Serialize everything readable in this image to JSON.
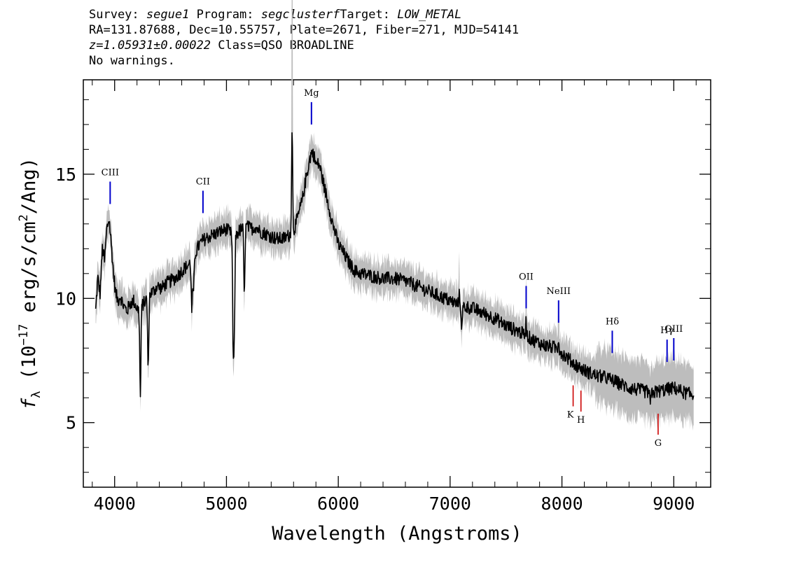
{
  "header": {
    "line1": {
      "survey_label": "Survey:",
      "survey": "segue1",
      "program_label": "Program:",
      "program": "segclusterf",
      "target_label": "Target:",
      "target": "LOW_METAL"
    },
    "line2": "RA=131.87688, Dec=10.55757, Plate=2671, Fiber=271, MJD=54141",
    "line3": {
      "redshift": "z=1.05931±0.00022",
      "class": "Class=QSO BROADLINE"
    },
    "line4": "No warnings."
  },
  "chart_data": {
    "type": "line",
    "xlabel": "Wavelength (Angstroms)",
    "ylabel_prefix": "f",
    "ylabel_sub": "λ",
    "ylabel_main": " (10",
    "ylabel_exp": "−17",
    "ylabel_rest": " erg/s/cm",
    "ylabel_exp2": "2",
    "ylabel_end": "/Ang)",
    "xlim": [
      3720,
      9330
    ],
    "ylim": [
      2.4,
      18.8
    ],
    "xticks": [
      4000,
      5000,
      6000,
      7000,
      8000,
      9000
    ],
    "xtick_labels": [
      "4000",
      "5000",
      "6000",
      "7000",
      "8000",
      "9000"
    ],
    "yticks": [
      5,
      10,
      15
    ],
    "ytick_labels": [
      "5",
      "10",
      "15"
    ],
    "series": [
      {
        "colors": "#000000",
        "points": [
          [
            3830,
            9.5
          ],
          [
            3850,
            10.8
          ],
          [
            3870,
            10.2
          ],
          [
            3890,
            12.0
          ],
          [
            3910,
            11.5
          ],
          [
            3930,
            12.8
          ],
          [
            3950,
            13.2
          ],
          [
            3970,
            12.2
          ],
          [
            3990,
            11.0
          ],
          [
            4010,
            10.2
          ],
          [
            4030,
            9.9
          ],
          [
            4050,
            10.1
          ],
          [
            4080,
            9.7
          ],
          [
            4110,
            9.5
          ],
          [
            4140,
            9.8
          ],
          [
            4170,
            9.9
          ],
          [
            4200,
            9.6
          ],
          [
            4220,
            9.5
          ],
          [
            4240,
            9.7
          ],
          [
            4260,
            9.8
          ],
          [
            4290,
            10.0
          ],
          [
            4320,
            10.2
          ],
          [
            4350,
            10.3
          ],
          [
            4380,
            10.5
          ],
          [
            4420,
            10.4
          ],
          [
            4460,
            10.6
          ],
          [
            4500,
            10.7
          ],
          [
            4540,
            10.8
          ],
          [
            4580,
            11.0
          ],
          [
            4620,
            11.2
          ],
          [
            4650,
            11.3
          ],
          [
            4690,
            11.5
          ],
          [
            4720,
            11.8
          ],
          [
            4750,
            12.1
          ],
          [
            4780,
            12.3
          ],
          [
            4810,
            12.4
          ],
          [
            4850,
            12.5
          ],
          [
            4900,
            12.6
          ],
          [
            4950,
            12.7
          ],
          [
            5000,
            12.8
          ],
          [
            5040,
            12.6
          ],
          [
            5080,
            12.5
          ],
          [
            5110,
            12.7
          ],
          [
            5140,
            12.8
          ],
          [
            5180,
            12.9
          ],
          [
            5220,
            12.8
          ],
          [
            5260,
            12.9
          ],
          [
            5300,
            12.7
          ],
          [
            5350,
            12.6
          ],
          [
            5400,
            12.5
          ],
          [
            5450,
            12.4
          ],
          [
            5500,
            12.4
          ],
          [
            5550,
            12.5
          ],
          [
            5600,
            12.7
          ],
          [
            5640,
            13.3
          ],
          [
            5680,
            14.0
          ],
          [
            5710,
            14.8
          ],
          [
            5740,
            15.5
          ],
          [
            5760,
            15.9
          ],
          [
            5780,
            15.8
          ],
          [
            5800,
            15.4
          ],
          [
            5830,
            15.4
          ],
          [
            5860,
            14.8
          ],
          [
            5900,
            14.0
          ],
          [
            5950,
            13.0
          ],
          [
            6000,
            12.2
          ],
          [
            6050,
            11.8
          ],
          [
            6100,
            11.4
          ],
          [
            6150,
            11.1
          ],
          [
            6200,
            11.0
          ],
          [
            6300,
            10.9
          ],
          [
            6400,
            10.8
          ],
          [
            6500,
            10.8
          ],
          [
            6600,
            10.7
          ],
          [
            6700,
            10.5
          ],
          [
            6800,
            10.3
          ],
          [
            6900,
            10.1
          ],
          [
            7000,
            9.9
          ],
          [
            7100,
            9.7
          ],
          [
            7200,
            9.6
          ],
          [
            7300,
            9.4
          ],
          [
            7400,
            9.2
          ],
          [
            7500,
            8.9
          ],
          [
            7600,
            8.7
          ],
          [
            7680,
            8.5
          ],
          [
            7750,
            8.3
          ],
          [
            7850,
            8.1
          ],
          [
            7950,
            8.0
          ],
          [
            8000,
            7.8
          ],
          [
            8100,
            7.4
          ],
          [
            8200,
            7.1
          ],
          [
            8300,
            6.9
          ],
          [
            8400,
            6.8
          ],
          [
            8500,
            6.6
          ],
          [
            8600,
            6.4
          ],
          [
            8700,
            6.3
          ],
          [
            8800,
            6.2
          ],
          [
            8900,
            6.3
          ],
          [
            9000,
            6.4
          ],
          [
            9100,
            6.2
          ],
          [
            9180,
            6.1
          ]
        ]
      }
    ],
    "emission_lines": [
      {
        "label": "CIII",
        "x": 3960,
        "color": "#0000cc"
      },
      {
        "label": "CII",
        "x": 4790,
        "color": "#0000cc"
      },
      {
        "label": "Mg",
        "x": 5760,
        "color": "#0000cc"
      },
      {
        "label": "OII",
        "x": 7680,
        "color": "#0000cc"
      },
      {
        "label": "NeIII",
        "x": 7970,
        "color": "#0000cc"
      },
      {
        "label": "Hδ",
        "x": 8450,
        "color": "#0000cc"
      },
      {
        "label": "Hγ",
        "x": 8940,
        "color": "#0000cc"
      },
      {
        "label": "OIII",
        "x": 9000,
        "color": "#0000cc"
      }
    ],
    "absorption_lines": [
      {
        "label": "K",
        "x": 8100,
        "color": "#cc0000"
      },
      {
        "label": "H",
        "x": 8170,
        "color": "#cc0000"
      },
      {
        "label": "G",
        "x": 8860,
        "color": "#cc0000"
      }
    ]
  }
}
